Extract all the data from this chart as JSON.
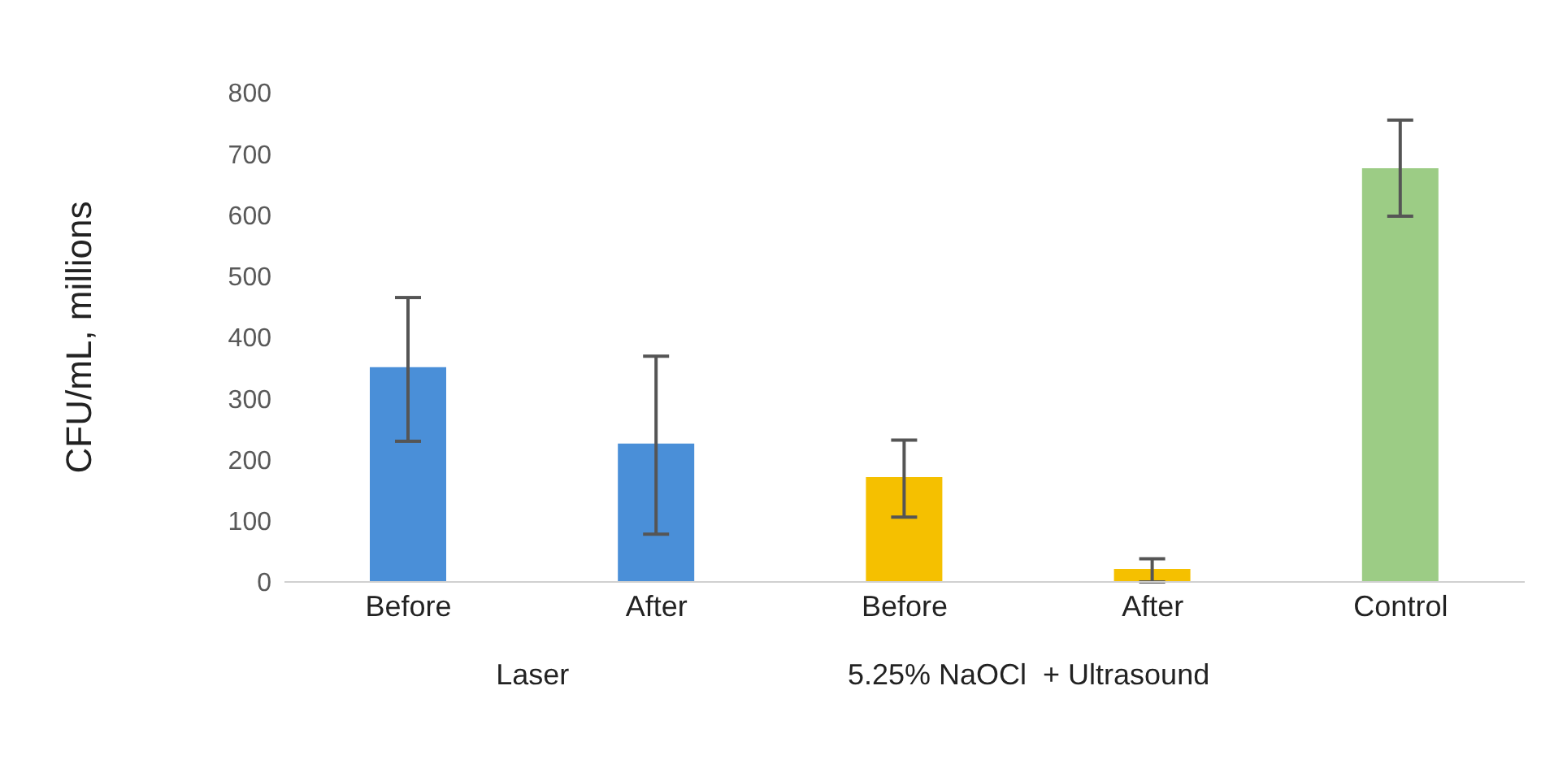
{
  "chart_data": {
    "type": "bar",
    "ylabel": "CFU/mL, millions",
    "categories": [
      "Before",
      "After",
      "Before",
      "After",
      "Control"
    ],
    "values": [
      350,
      225,
      170,
      20,
      675
    ],
    "errors": [
      [
        230,
        465
      ],
      [
        78,
        369
      ],
      [
        106,
        232
      ],
      [
        0,
        38
      ],
      [
        598,
        755
      ]
    ],
    "colors": [
      "#4a8fd8",
      "#4a8fd8",
      "#f5c000",
      "#f5c000",
      "#9ccc85"
    ],
    "ylim": [
      0,
      800
    ],
    "yticks": [
      0,
      100,
      200,
      300,
      400,
      500,
      600,
      700,
      800
    ],
    "annotations": [
      "Laser",
      "5.25% NaOCl  + Ultrasound"
    ]
  }
}
